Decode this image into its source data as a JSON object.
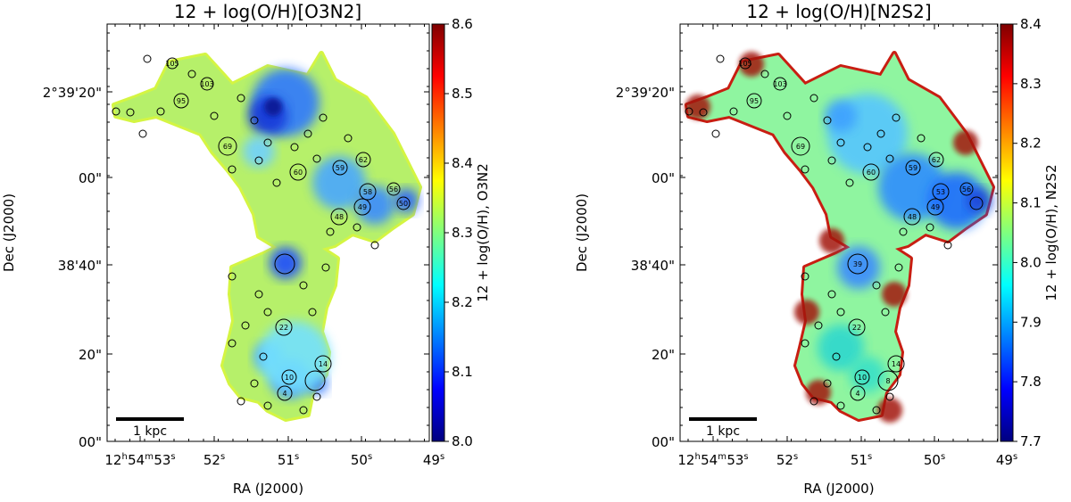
{
  "chart_data": [
    {
      "type": "heatmap",
      "title": "12 + log(O/H)[O3N2]",
      "xlabel": "RA (J2000)",
      "ylabel": "Dec (J2000)",
      "ra_ticks": [
        {
          "main": "12",
          "sup1": "h",
          "mid": "54",
          "sup2": "m",
          "last": "53",
          "sup3": "s"
        },
        {
          "main": "52",
          "sup3": "s"
        },
        {
          "main": "51",
          "sup3": "s"
        },
        {
          "main": "50",
          "sup3": "s"
        },
        {
          "main": "49",
          "sup3": "s"
        }
      ],
      "dec_ticks": [
        "2°39'20\"",
        "00\"",
        "38'40\"",
        "20\"",
        "00\""
      ],
      "colorbar": {
        "label": "12 + log(O/H), O3N2",
        "range": [
          8.0,
          8.6
        ],
        "ticks": [
          "8.6",
          "8.5",
          "8.4",
          "8.3",
          "8.2",
          "8.1",
          "8.0"
        ],
        "colormap": "jet"
      },
      "scale_bar": "1 kpc",
      "region_labels": [
        "105",
        "103",
        "95",
        "69",
        "60",
        "59",
        "62",
        "58",
        "56",
        "48",
        "49",
        "50",
        "39",
        "22",
        "14",
        "10",
        "8",
        "4"
      ]
    },
    {
      "type": "heatmap",
      "title": "12 + log(O/H)[N2S2]",
      "xlabel": "RA (J2000)",
      "ylabel": "Dec (J2000)",
      "ra_ticks": [
        {
          "main": "12",
          "sup1": "h",
          "mid": "54",
          "sup2": "m",
          "last": "53",
          "sup3": "s"
        },
        {
          "main": "52",
          "sup3": "s"
        },
        {
          "main": "51",
          "sup3": "s"
        },
        {
          "main": "50",
          "sup3": "s"
        },
        {
          "main": "49",
          "sup3": "s"
        }
      ],
      "dec_ticks": [
        "2°39'20\"",
        "00\"",
        "38'40\"",
        "20\"",
        "00\""
      ],
      "colorbar": {
        "label": "12 + log(O/H), N2S2",
        "range": [
          7.7,
          8.4
        ],
        "ticks": [
          "8.4",
          "8.3",
          "8.2",
          "8.1",
          "8.0",
          "7.9",
          "7.8",
          "7.7"
        ],
        "colormap": "jet"
      },
      "scale_bar": "1 kpc",
      "region_labels": [
        "105",
        "103",
        "95",
        "69",
        "60",
        "59",
        "62",
        "53",
        "56",
        "48",
        "49",
        "39",
        "22",
        "14",
        "10",
        "8",
        "4"
      ]
    }
  ]
}
